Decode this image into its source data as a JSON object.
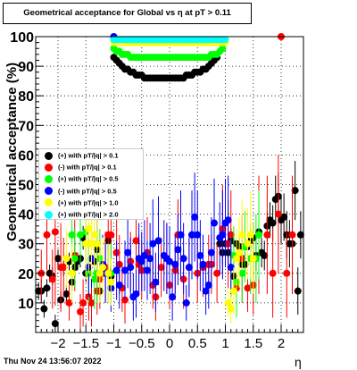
{
  "title": "Geometrical acceptance for Global vs  η at pT > 0.11",
  "timestamp": "Thu Nov 24 13:56:07 2022",
  "chart_data": {
    "type": "scatter",
    "xlabel": "η",
    "ylabel": "Geometrical acceptance (%)",
    "xlim": [
      -2.4,
      2.4
    ],
    "ylim": [
      0,
      100
    ],
    "x_ticks": [
      -2,
      -1.5,
      -1,
      -0.5,
      0,
      0.5,
      1,
      1.5,
      2
    ],
    "x_tick_labels": [
      "−2",
      "−1.5",
      "−1",
      "−0.5",
      "0",
      "0.5",
      "1",
      "1.5",
      "2"
    ],
    "y_ticks": [
      10,
      20,
      30,
      40,
      50,
      60,
      70,
      80,
      90,
      100
    ],
    "y_tick_labels": [
      "10",
      "20",
      "30",
      "40",
      "50",
      "60",
      "70",
      "80",
      "90",
      "100"
    ],
    "grid": true,
    "legend_position": "center-left",
    "series": [
      {
        "name": "(+) with pT/|q| > 0.1",
        "color": "#000000",
        "x": [
          -2.35,
          -2.3,
          -2.25,
          -2.2,
          -2.15,
          -2.1,
          -2.05,
          -2.0,
          -1.95,
          -1.9,
          -1.85,
          -1.8,
          -1.75,
          -1.7,
          -1.65,
          -1.6,
          -1.55,
          -1.5,
          -1.45,
          -1.4,
          -1.35,
          -1.3,
          -1.25,
          -1.2,
          -1.15,
          -1.1,
          -1.05,
          -1.0,
          -0.95,
          -0.9,
          -0.85,
          -0.8,
          -0.75,
          -0.7,
          -0.65,
          -0.6,
          -0.55,
          -0.5,
          -0.45,
          -0.4,
          -0.35,
          -0.3,
          -0.25,
          -0.2,
          -0.15,
          -0.1,
          -0.05,
          0.0,
          0.05,
          0.1,
          0.15,
          0.2,
          0.25,
          0.3,
          0.35,
          0.4,
          0.45,
          0.5,
          0.55,
          0.6,
          0.65,
          0.7,
          0.75,
          0.8,
          0.85,
          0.9,
          0.95,
          1.0,
          1.05,
          1.1,
          1.15,
          1.2,
          1.25,
          1.3,
          1.35,
          1.4,
          1.45,
          1.5,
          1.55,
          1.6,
          1.65,
          1.7,
          1.75,
          1.8,
          1.85,
          1.9,
          1.95,
          2.0,
          2.05,
          2.1,
          2.15,
          2.2,
          2.25,
          2.3,
          2.35
        ],
        "y": [
          14,
          14,
          8,
          15,
          20,
          19,
          3,
          25,
          11,
          22,
          13,
          24,
          17,
          22,
          24,
          25,
          32,
          20,
          22,
          30,
          24,
          28,
          14,
          20,
          21,
          31,
          19,
          93,
          92,
          91,
          90,
          89,
          89,
          88,
          88,
          87,
          87,
          87,
          86,
          86,
          86,
          86,
          86,
          86,
          86,
          86,
          86,
          86,
          86,
          86,
          86,
          86,
          86,
          87,
          87,
          87,
          88,
          88,
          88,
          89,
          89,
          90,
          91,
          92,
          93,
          30,
          27,
          30,
          27,
          31,
          19,
          30,
          29,
          23,
          23,
          29,
          31,
          32,
          26,
          34,
          27,
          26,
          36,
          38,
          37,
          45,
          46,
          38,
          39,
          33,
          30,
          30,
          48,
          14,
          33
        ],
        "err": [
          3,
          4,
          3,
          3,
          3,
          3,
          3,
          3,
          3,
          3,
          3,
          3,
          3,
          3,
          3,
          3,
          4,
          3,
          3,
          3,
          3,
          3,
          3,
          3,
          3,
          3,
          3,
          0.5,
          0.5,
          0.5,
          0.5,
          0.5,
          0.5,
          0.5,
          0.5,
          0.5,
          0.5,
          0.5,
          0.5,
          0.5,
          0.5,
          0.5,
          0.5,
          0.5,
          0.5,
          0.5,
          0.5,
          0.5,
          0.5,
          0.5,
          0.5,
          0.5,
          0.5,
          0.5,
          0.5,
          0.5,
          0.5,
          0.5,
          0.5,
          0.5,
          0.5,
          0.5,
          0.5,
          0.5,
          0.5,
          4,
          4,
          4,
          4,
          4,
          4,
          4,
          4,
          4,
          4,
          4,
          4,
          5,
          5,
          5,
          5,
          5,
          5,
          6,
          6,
          8,
          8,
          8,
          8,
          8,
          8,
          8,
          10,
          8,
          8
        ]
      },
      {
        "name": "(-) with pT/|q| > 0.1",
        "color": "#ff0000",
        "x": [
          -2.3,
          -2.2,
          -2.1,
          -2.05,
          -1.95,
          -1.9,
          -1.8,
          -1.7,
          -1.6,
          -1.55,
          -1.45,
          -1.4,
          -1.3,
          -1.25,
          -1.15,
          -1.1,
          -1.05,
          -0.95,
          -0.9,
          -0.85,
          -0.8,
          -0.7,
          -0.6,
          -0.55,
          -0.5,
          -0.4,
          -0.3,
          -0.25,
          -0.15,
          -0.05,
          0.0,
          0.1,
          0.15,
          0.25,
          0.35,
          0.4,
          0.5,
          0.6,
          0.7,
          0.75,
          0.85,
          0.95,
          1.05,
          1.1,
          1.2,
          1.3,
          1.4,
          1.5,
          1.6,
          1.75,
          1.85,
          1.95,
          2.0,
          2.1,
          2.2
        ],
        "y": [
          20,
          33,
          18,
          34,
          22,
          22,
          10,
          26,
          7,
          10,
          12,
          10,
          14,
          18,
          22,
          33,
          33,
          27,
          23,
          15,
          11,
          24,
          31,
          23,
          21,
          27,
          16,
          12,
          22,
          25,
          16,
          21,
          33,
          18,
          22,
          33,
          20,
          22,
          23,
          23,
          20,
          35,
          30,
          33,
          15,
          25,
          15,
          16,
          33,
          33,
          20,
          40,
          100,
          20,
          33
        ],
        "err": [
          8,
          12,
          10,
          25,
          15,
          10,
          6,
          12,
          6,
          8,
          8,
          8,
          8,
          10,
          12,
          15,
          15,
          12,
          10,
          8,
          8,
          10,
          12,
          10,
          10,
          12,
          8,
          8,
          10,
          12,
          8,
          10,
          12,
          10,
          10,
          15,
          10,
          10,
          10,
          10,
          10,
          15,
          15,
          15,
          8,
          15,
          8,
          10,
          20,
          20,
          15,
          20,
          0.5,
          15,
          20
        ]
      },
      {
        "name": "(+) with pT/|q| > 0.5",
        "color": "#00ff00",
        "x": [
          -1.75,
          -1.7,
          -1.6,
          -1.5,
          -1.45,
          -1.4,
          -1.35,
          -1.3,
          -1.25,
          -1.1,
          -1.05,
          -1.0,
          -0.95,
          -0.9,
          -0.85,
          -0.8,
          -0.75,
          -0.7,
          -0.65,
          -0.6,
          -0.55,
          -0.5,
          -0.45,
          -0.4,
          -0.35,
          -0.3,
          -0.25,
          -0.2,
          -0.15,
          -0.1,
          -0.05,
          0.0,
          0.05,
          0.1,
          0.15,
          0.2,
          0.25,
          0.3,
          0.35,
          0.4,
          0.45,
          0.5,
          0.55,
          0.6,
          0.65,
          0.7,
          0.75,
          0.8,
          0.85,
          0.9,
          0.95,
          1.1,
          1.15,
          1.2,
          1.3,
          1.35,
          1.45,
          1.55,
          1.6
        ],
        "y": [
          33,
          25,
          33,
          34,
          20,
          25,
          18,
          20,
          25,
          20,
          20,
          96,
          95,
          95,
          94,
          94,
          94,
          93,
          93,
          93,
          93,
          93,
          93,
          93,
          93,
          93,
          93,
          93,
          93,
          93,
          93,
          93,
          93,
          93,
          93,
          93,
          93,
          93,
          93,
          93,
          93,
          93,
          93,
          93,
          93,
          93,
          94,
          94,
          94,
          95,
          96,
          22,
          26,
          17,
          20,
          29,
          25,
          25,
          33
        ],
        "err": [
          10,
          10,
          10,
          10,
          10,
          10,
          10,
          10,
          10,
          10,
          10,
          0.5,
          0.5,
          0.5,
          0.5,
          0.5,
          0.5,
          0.5,
          0.5,
          0.5,
          0.5,
          0.5,
          0.5,
          0.5,
          0.5,
          0.5,
          0.5,
          0.5,
          0.5,
          0.5,
          0.5,
          0.5,
          0.5,
          0.5,
          0.5,
          0.5,
          0.5,
          0.5,
          0.5,
          0.5,
          0.5,
          0.5,
          0.5,
          0.5,
          0.5,
          0.5,
          0.5,
          0.5,
          0.5,
          0.5,
          0.5,
          10,
          10,
          12,
          10,
          12,
          12,
          15,
          15
        ]
      },
      {
        "name": "(-) with pT/|q| > 0.5",
        "color": "#0000ff",
        "x": [
          -1.45,
          -1.4,
          -1.3,
          -1.2,
          -1.15,
          -1.05,
          -1.0,
          -0.95,
          -0.9,
          -0.8,
          -0.75,
          -0.7,
          -0.65,
          -0.6,
          -0.55,
          -0.5,
          -0.45,
          -0.4,
          -0.35,
          -0.3,
          -0.25,
          -0.2,
          -0.1,
          -0.05,
          0.0,
          0.05,
          0.1,
          0.15,
          0.2,
          0.25,
          0.3,
          0.35,
          0.4,
          0.45,
          0.5,
          0.55,
          0.6,
          0.65,
          0.7,
          0.75,
          0.8,
          0.9,
          0.95,
          1.0,
          1.05,
          1.1
        ],
        "y": [
          22,
          25,
          30,
          23,
          20,
          15,
          100,
          21,
          16,
          21,
          27,
          22,
          12,
          13,
          25,
          24,
          26,
          21,
          25,
          30,
          17,
          31,
          26,
          25,
          24,
          12,
          23,
          28,
          33,
          25,
          10,
          22,
          33,
          39,
          33,
          26,
          23,
          14,
          16,
          27,
          37,
          32,
          33,
          37,
          38,
          22
        ],
        "err": [
          10,
          10,
          12,
          10,
          10,
          8,
          0.5,
          10,
          8,
          10,
          12,
          10,
          8,
          8,
          12,
          10,
          12,
          10,
          12,
          15,
          10,
          15,
          12,
          12,
          12,
          8,
          10,
          12,
          15,
          12,
          6,
          10,
          15,
          15,
          15,
          12,
          10,
          8,
          8,
          12,
          15,
          12,
          15,
          15,
          15,
          10
        ],
        "y_upper_hint": [
          null
        ]
      },
      {
        "name": "(+) with pT/|q| > 1.0",
        "color": "#ffff00",
        "x": [
          -1.85,
          -1.75,
          -1.5,
          -1.45,
          -1.4,
          -1.35,
          -1.3,
          -1.25,
          -1.2,
          -1.1,
          -1.05,
          -1.0,
          -0.95,
          -0.9,
          -0.85,
          -0.8,
          -0.75,
          -0.7,
          -0.65,
          -0.6,
          -0.55,
          -0.5,
          -0.45,
          -0.4,
          -0.35,
          -0.3,
          -0.25,
          -0.2,
          -0.15,
          -0.1,
          -0.05,
          0.0,
          0.05,
          0.1,
          0.15,
          0.2,
          0.25,
          0.3,
          0.35,
          0.4,
          0.45,
          0.5,
          0.55,
          0.6,
          0.65,
          0.7,
          0.75,
          0.8,
          0.85,
          0.9,
          0.95,
          1.0,
          1.05,
          1.1,
          1.15,
          1.2,
          1.25,
          1.3,
          1.4,
          1.45,
          1.5
        ],
        "y": [
          25,
          20,
          30,
          35,
          30,
          33,
          30,
          20,
          22,
          20,
          17,
          98,
          98,
          98,
          98,
          98,
          98,
          98,
          98,
          98,
          98,
          98,
          98,
          98,
          98,
          98,
          98,
          98,
          98,
          98,
          98,
          98,
          98,
          98,
          98,
          98,
          98,
          98,
          98,
          98,
          98,
          98,
          98,
          98,
          98,
          98,
          98,
          98,
          98,
          98,
          98,
          98,
          10,
          8,
          14,
          25,
          27,
          33,
          30,
          33,
          25
        ],
        "err": [
          10,
          10,
          12,
          15,
          12,
          12,
          12,
          10,
          10,
          10,
          8,
          0.5,
          0.5,
          0.5,
          0.5,
          0.5,
          0.5,
          0.5,
          0.5,
          0.5,
          0.5,
          0.5,
          0.5,
          0.5,
          0.5,
          0.5,
          0.5,
          0.5,
          0.5,
          0.5,
          0.5,
          0.5,
          0.5,
          0.5,
          0.5,
          0.5,
          0.5,
          0.5,
          0.5,
          0.5,
          0.5,
          0.5,
          0.5,
          0.5,
          0.5,
          0.5,
          0.5,
          0.5,
          0.5,
          0.5,
          0.5,
          0.5,
          5,
          5,
          8,
          10,
          12,
          12,
          12,
          15,
          12
        ]
      },
      {
        "name": "(+) with pT/|q| > 2.0",
        "color": "#00ffff",
        "x": [
          -1.0,
          -0.95,
          -0.9,
          -0.85,
          -0.8,
          -0.75,
          -0.7,
          -0.65,
          -0.6,
          -0.55,
          -0.5,
          -0.45,
          -0.4,
          -0.35,
          -0.3,
          -0.25,
          -0.2,
          -0.15,
          -0.1,
          -0.05,
          0.0,
          0.05,
          0.1,
          0.15,
          0.2,
          0.25,
          0.3,
          0.35,
          0.4,
          0.45,
          0.5,
          0.55,
          0.6,
          0.65,
          0.7,
          0.75,
          0.8,
          0.85,
          0.9,
          0.95,
          1.0
        ],
        "y": [
          99,
          99,
          99,
          99,
          99,
          99,
          99,
          99,
          99,
          99,
          99,
          99,
          99,
          99,
          99,
          99,
          99,
          99,
          99,
          99,
          99,
          99,
          99,
          99,
          99,
          99,
          99,
          99,
          99,
          99,
          99,
          99,
          99,
          99,
          99,
          99,
          99,
          99,
          99,
          99,
          99
        ],
        "err": [
          0.5,
          0.5,
          0.5,
          0.5,
          0.5,
          0.5,
          0.5,
          0.5,
          0.5,
          0.5,
          0.5,
          0.5,
          0.5,
          0.5,
          0.5,
          0.5,
          0.5,
          0.5,
          0.5,
          0.5,
          0.5,
          0.5,
          0.5,
          0.5,
          0.5,
          0.5,
          0.5,
          0.5,
          0.5,
          0.5,
          0.5,
          0.5,
          0.5,
          0.5,
          0.5,
          0.5,
          0.5,
          0.5,
          0.5,
          0.5,
          0.5
        ]
      }
    ]
  }
}
